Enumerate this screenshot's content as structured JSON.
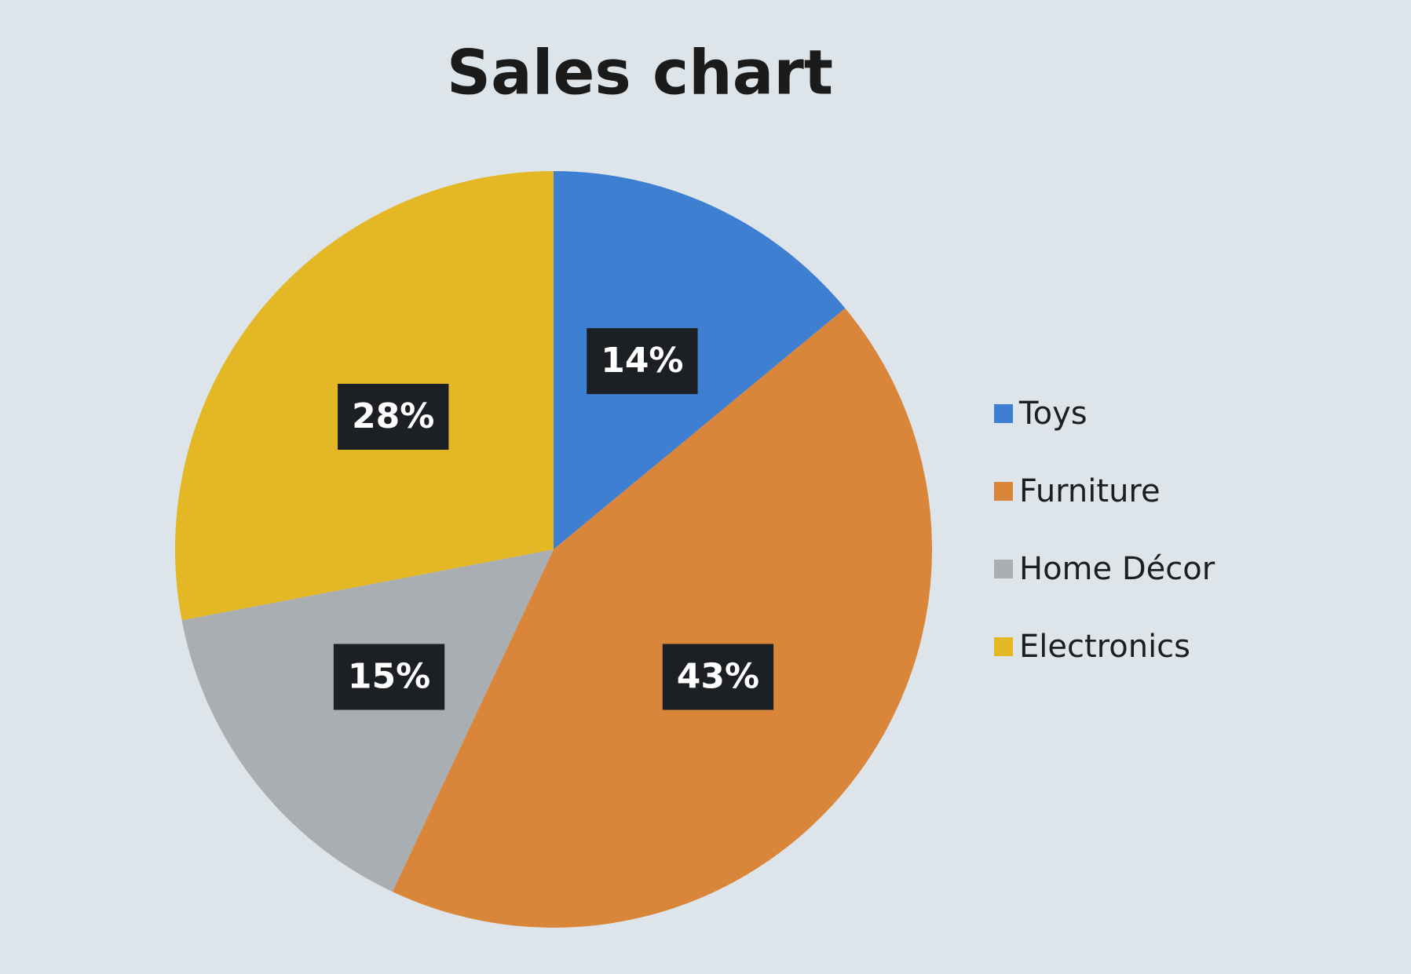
{
  "chart_data": {
    "type": "pie",
    "title": "Sales chart",
    "categories": [
      "Toys",
      "Furniture",
      "Home Décor",
      "Electronics"
    ],
    "values": [
      14,
      43,
      15,
      28
    ],
    "value_labels": [
      "14%",
      "43%",
      "15%",
      "28%"
    ],
    "colors": [
      "#3f7fd2",
      "#d9863b",
      "#a9aeb2",
      "#e4b724"
    ],
    "legend": "right"
  }
}
